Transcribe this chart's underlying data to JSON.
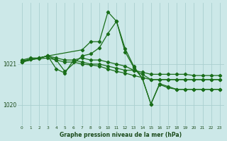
{
  "background_color": "#cce8e8",
  "grid_color": "#aacfcf",
  "line_color": "#1a6e1a",
  "title": "Graphe pression niveau de la mer (hPa)",
  "yticks": [
    1020,
    1021
  ],
  "xlim": [
    -0.5,
    23.5
  ],
  "ylim": [
    1019.55,
    1022.45
  ],
  "series": [
    {
      "x": [
        0,
        1,
        2,
        3,
        4,
        5,
        6,
        7,
        8,
        9,
        10,
        11,
        12,
        13,
        14,
        15,
        16,
        17,
        18,
        19,
        20,
        21,
        22,
        23
      ],
      "y": [
        1021.1,
        1021.15,
        1021.15,
        1021.2,
        1021.15,
        1021.1,
        1021.1,
        1021.05,
        1021.0,
        1021.0,
        1020.95,
        1020.9,
        1020.85,
        1020.85,
        1020.8,
        1020.75,
        1020.75,
        1020.75,
        1020.75,
        1020.75,
        1020.72,
        1020.72,
        1020.72,
        1020.72
      ]
    },
    {
      "x": [
        0,
        1,
        2,
        3,
        4,
        5,
        6,
        7,
        8,
        9,
        10,
        11,
        12,
        13,
        14,
        15,
        16,
        17,
        18,
        19,
        20,
        21,
        22,
        23
      ],
      "y": [
        1021.08,
        1021.12,
        1021.13,
        1021.15,
        1021.1,
        1021.05,
        1021.05,
        1021.0,
        1020.98,
        1020.95,
        1020.88,
        1020.82,
        1020.78,
        1020.72,
        1020.67,
        1020.62,
        1020.62,
        1020.62,
        1020.62,
        1020.62,
        1020.62,
        1020.62,
        1020.62,
        1020.62
      ]
    },
    {
      "x": [
        0,
        1,
        2,
        3,
        4,
        5,
        6,
        7,
        8,
        9,
        10,
        11,
        12,
        13,
        14,
        15,
        16,
        17,
        18,
        19,
        20,
        21,
        22,
        23
      ],
      "y": [
        1021.05,
        1021.12,
        1021.15,
        1021.2,
        1020.88,
        1020.78,
        1021.1,
        1021.15,
        1021.1,
        1021.1,
        1021.05,
        1021.0,
        1020.95,
        1020.85,
        1020.75,
        1020.62,
        1020.62,
        1020.62,
        1020.62,
        1020.62,
        1020.62,
        1020.62,
        1020.62,
        1020.62
      ]
    },
    {
      "x": [
        0,
        3,
        7,
        8,
        9,
        10,
        11,
        12,
        13,
        14,
        15,
        16,
        17,
        18,
        19,
        20,
        21,
        22,
        23
      ],
      "y": [
        1021.05,
        1021.2,
        1021.35,
        1021.55,
        1021.55,
        1022.28,
        1022.05,
        1021.3,
        1020.92,
        1020.65,
        1020.02,
        1020.52,
        1020.45,
        1020.38,
        1020.38,
        1020.38,
        1020.38,
        1020.38,
        1020.38
      ]
    },
    {
      "x": [
        0,
        3,
        4,
        5,
        7,
        8,
        9,
        10,
        11,
        12,
        13,
        14,
        15,
        16,
        17,
        18,
        19,
        20,
        21,
        22,
        23
      ],
      "y": [
        1021.05,
        1021.2,
        1021.1,
        1020.82,
        1021.2,
        1021.25,
        1021.4,
        1021.75,
        1022.05,
        1021.38,
        1020.95,
        1020.65,
        1020.02,
        1020.5,
        1020.42,
        1020.38,
        1020.38,
        1020.38,
        1020.38,
        1020.38,
        1020.38
      ]
    }
  ]
}
